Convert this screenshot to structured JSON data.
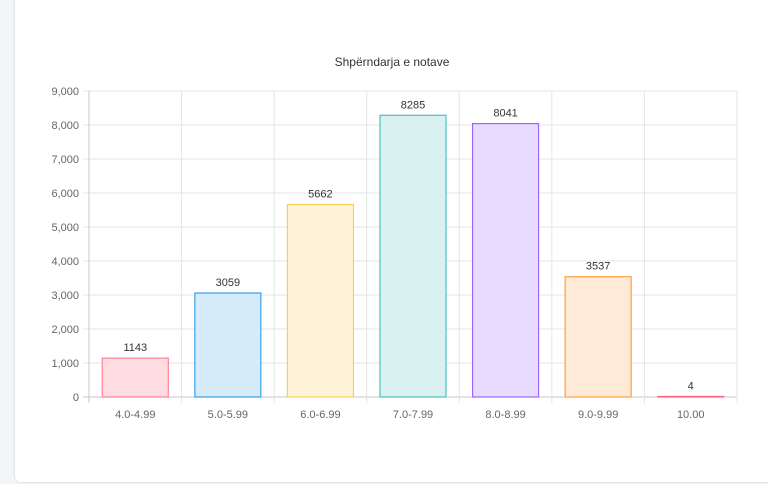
{
  "chart_data": {
    "type": "bar",
    "title": "Shpërndarja e notave",
    "xlabel": "",
    "ylabel": "",
    "categories": [
      "4.0-4.99",
      "5.0-5.99",
      "6.0-6.99",
      "7.0-7.99",
      "8.0-8.99",
      "9.0-9.99",
      "10.00"
    ],
    "values": [
      1143,
      3059,
      5662,
      8285,
      8041,
      3537,
      4
    ],
    "ylim": [
      0,
      9000
    ],
    "yticks": [
      "0",
      "1,000",
      "2,000",
      "3,000",
      "4,000",
      "5,000",
      "6,000",
      "7,000",
      "8,000",
      "9,000"
    ],
    "grid": true,
    "legend": "none",
    "bar_fill_colors": [
      "#ffdde3",
      "#d6ebfa",
      "#fff3d9",
      "#daf1f1",
      "#e7dcff",
      "#ffead8",
      "#ffdde3"
    ],
    "bar_border_colors": [
      "#ff7f97",
      "#36a2eb",
      "#ffcd56",
      "#4bc0c0",
      "#9966ff",
      "#ff9f40",
      "#ff6384"
    ]
  }
}
